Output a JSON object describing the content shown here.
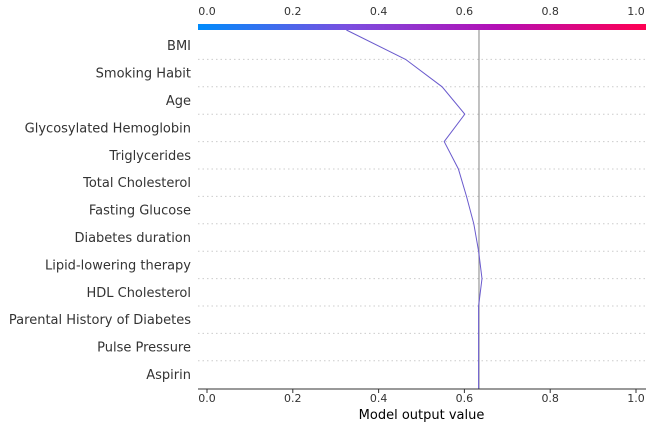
{
  "chart_data": {
    "type": "line",
    "subtype": "shap-decision-plot",
    "xlabel": "Model output value",
    "xlim": [
      0.0,
      1.0
    ],
    "x_ticks": [
      "0.0",
      "0.2",
      "0.4",
      "0.6",
      "0.8",
      "1.0"
    ],
    "base_value": 0.634,
    "features": [
      "BMI",
      "Smoking Habit",
      "Age",
      "Glycosylated Hemoglobin",
      "Triglycerides",
      "Total Cholesterol",
      "Fasting Glucose",
      "Diabetes duration",
      "Lipid-lowering therapy",
      "HDL Cholesterol",
      "Parental History of Diabetes",
      "Pulse Pressure",
      "Aspirin"
    ],
    "series": [
      {
        "values": [
          0.325,
          0.463,
          0.548,
          0.601,
          0.553,
          0.586,
          0.605,
          0.622,
          0.633,
          0.641,
          0.633,
          0.633,
          0.633,
          0.633
        ]
      }
    ],
    "colorbar": {
      "stops": [
        "#008bfb",
        "#7a4fe0",
        "#b30fb5",
        "#ff0052"
      ]
    },
    "line_color": "#6a5acd",
    "base_line_color": "#999999",
    "grid_color": "#cccccc"
  }
}
